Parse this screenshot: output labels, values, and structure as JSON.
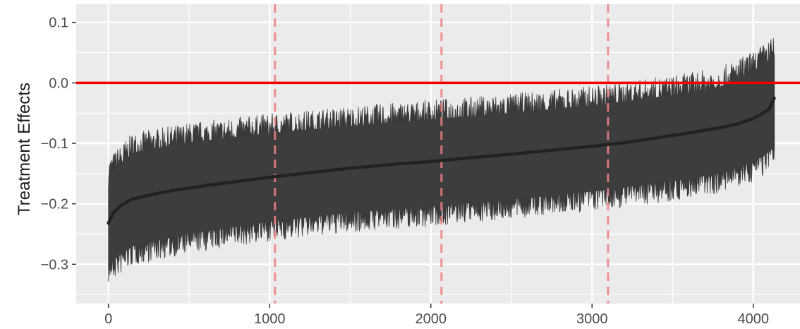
{
  "chart_data": {
    "type": "line",
    "title": "",
    "xlabel": "",
    "ylabel": "Treatment Effects",
    "xlim": [
      -200,
      4290
    ],
    "ylim": [
      -0.365,
      0.13
    ],
    "x_ticks": [
      0,
      1000,
      2000,
      3000,
      4000
    ],
    "x_tick_labels": [
      "0",
      "1000",
      "2000",
      "3000",
      "4000"
    ],
    "y_ticks": [
      0.1,
      0.0,
      -0.1,
      -0.2,
      -0.3
    ],
    "y_tick_labels": [
      "0.1",
      "0.0",
      "−0.1",
      "−0.2",
      "−0.3"
    ],
    "grid": true,
    "background_color": "#ebebeb",
    "grid_color": "#ffffff",
    "n_units": 4132,
    "reference_line": {
      "y": 0.0,
      "color": "#ee0000"
    },
    "vertical_reference_lines": {
      "x": [
        1033,
        2066,
        3099
      ],
      "style": "dashed",
      "color": "#f08080"
    },
    "series": [
      {
        "kind": "point_estimate",
        "color": "#222222",
        "x": [
          0,
          30,
          80,
          150,
          200,
          300,
          400,
          500,
          600,
          800,
          1000,
          1200,
          1500,
          1800,
          2000,
          2200,
          2500,
          2800,
          3000,
          3200,
          3400,
          3600,
          3800,
          3900,
          4000,
          4050,
          4100,
          4130
        ],
        "y": [
          -0.232,
          -0.215,
          -0.202,
          -0.192,
          -0.189,
          -0.183,
          -0.178,
          -0.174,
          -0.17,
          -0.163,
          -0.156,
          -0.15,
          -0.141,
          -0.134,
          -0.13,
          -0.125,
          -0.118,
          -0.11,
          -0.105,
          -0.099,
          -0.091,
          -0.083,
          -0.074,
          -0.068,
          -0.059,
          -0.052,
          -0.043,
          -0.025
        ]
      },
      {
        "kind": "interval_upper",
        "color": "#3a3a3a",
        "x": [
          0,
          150,
          500,
          1000,
          1500,
          2000,
          2500,
          3000,
          3500,
          3800,
          4000,
          4130
        ],
        "y": [
          -0.155,
          -0.115,
          -0.098,
          -0.083,
          -0.071,
          -0.06,
          -0.05,
          -0.037,
          -0.02,
          -0.006,
          0.02,
          0.045
        ]
      },
      {
        "kind": "interval_lower",
        "color": "#3a3a3a",
        "x": [
          0,
          150,
          500,
          1000,
          1500,
          2000,
          2500,
          3000,
          3500,
          3800,
          4000,
          4130
        ],
        "y": [
          -0.3,
          -0.27,
          -0.25,
          -0.23,
          -0.215,
          -0.205,
          -0.193,
          -0.18,
          -0.163,
          -0.15,
          -0.132,
          -0.108
        ]
      }
    ]
  }
}
